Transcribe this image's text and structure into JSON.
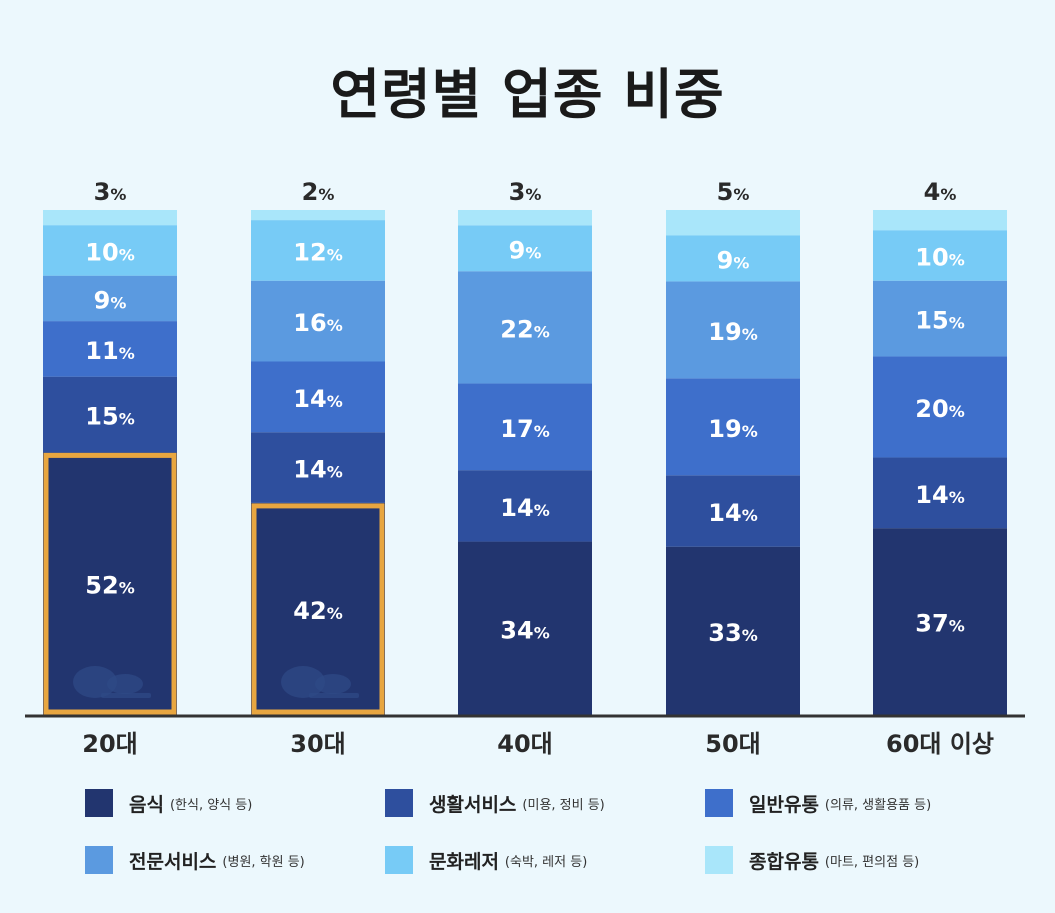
{
  "title": "연령별 업종 비중",
  "chart_data": {
    "type": "bar",
    "stacked": true,
    "title": "연령별 업종 비중",
    "categories": [
      "20대",
      "30대",
      "40대",
      "50대",
      "60대 이상"
    ],
    "series": [
      {
        "name": "음식",
        "note": "(한식, 양식 등)",
        "color": "#22356f",
        "values": [
          52,
          42,
          34,
          33,
          37
        ]
      },
      {
        "name": "생활서비스",
        "note": "(미용, 정비 등)",
        "color": "#2e4f9e",
        "values": [
          15,
          14,
          14,
          14,
          14
        ]
      },
      {
        "name": "일반유통",
        "note": "(의류, 생활용품 등)",
        "color": "#3e6fcb",
        "values": [
          11,
          14,
          17,
          19,
          20
        ]
      },
      {
        "name": "전문서비스",
        "note": "(병원, 학원 등)",
        "color": "#5b9ae0",
        "values": [
          9,
          16,
          22,
          19,
          15
        ]
      },
      {
        "name": "문화레저",
        "note": "(숙박, 레저 등)",
        "color": "#77cbf6",
        "values": [
          10,
          12,
          9,
          9,
          10
        ]
      },
      {
        "name": "종합유통",
        "note": "(마트, 편의점 등)",
        "color": "#a9e6fa",
        "values": [
          3,
          2,
          3,
          5,
          4
        ]
      }
    ],
    "value_suffix": "%",
    "highlighted": [
      {
        "category": "20대",
        "series": "음식"
      },
      {
        "category": "30대",
        "series": "음식"
      }
    ],
    "highlight_color": "#e8a640",
    "legend_position": "bottom",
    "grid": false
  }
}
